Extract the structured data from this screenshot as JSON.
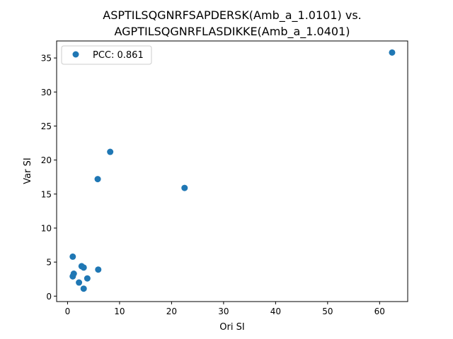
{
  "chart_data": {
    "type": "scatter",
    "title_line1": "ASPTILSQGNRFSAPDERSK(Amb_a_1.0101) vs.",
    "title_line2": "AGPTILSQGNRFLASDIKKE(Amb_a_1.0401)",
    "xlabel": "Ori SI",
    "ylabel": "Var SI",
    "xlim": [
      -2.1,
      65.4
    ],
    "ylim": [
      -0.8,
      37.5
    ],
    "xticks": [
      0,
      10,
      20,
      30,
      40,
      50,
      60
    ],
    "yticks": [
      0,
      5,
      10,
      15,
      20,
      25,
      30,
      35
    ],
    "grid": false,
    "legend_position": "upper-left",
    "series": [
      {
        "name": "PCC: 0.861",
        "color": "#1f77b4",
        "points": [
          {
            "x": 62.4,
            "y": 35.8
          },
          {
            "x": 8.2,
            "y": 21.2
          },
          {
            "x": 5.8,
            "y": 17.2
          },
          {
            "x": 22.5,
            "y": 15.9
          },
          {
            "x": 1.0,
            "y": 5.8
          },
          {
            "x": 2.7,
            "y": 4.4
          },
          {
            "x": 3.1,
            "y": 4.2
          },
          {
            "x": 5.9,
            "y": 3.9
          },
          {
            "x": 1.2,
            "y": 3.3
          },
          {
            "x": 1.0,
            "y": 2.9
          },
          {
            "x": 3.8,
            "y": 2.6
          },
          {
            "x": 2.2,
            "y": 2.0
          },
          {
            "x": 3.1,
            "y": 1.1
          }
        ]
      }
    ]
  }
}
